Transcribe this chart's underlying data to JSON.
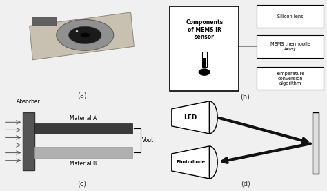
{
  "background_color": "#f0f0f0",
  "panel_a_label": "(a)",
  "panel_b_label": "(b)",
  "panel_c_label": "(c)",
  "panel_d_label": "(d)",
  "panel_b": {
    "center_box_text": "Components\nof MEMS IR\nsensor",
    "right_boxes": [
      "Silicon lens",
      "MEMS thermopile\nArray",
      "Temperature\nconversion\nalgorithm"
    ]
  },
  "panel_c": {
    "absorber_label": "Absorber",
    "material_a_label": "Material A",
    "material_b_label": "Material B",
    "vout_label": "Vout",
    "dark_color": "#3a3a3a",
    "light_color": "#b0b0b0",
    "absorber_color": "#555555"
  },
  "panel_d": {
    "led_label": "LED",
    "photodiode_label": "Photodiode",
    "arrow_color": "#111111"
  }
}
